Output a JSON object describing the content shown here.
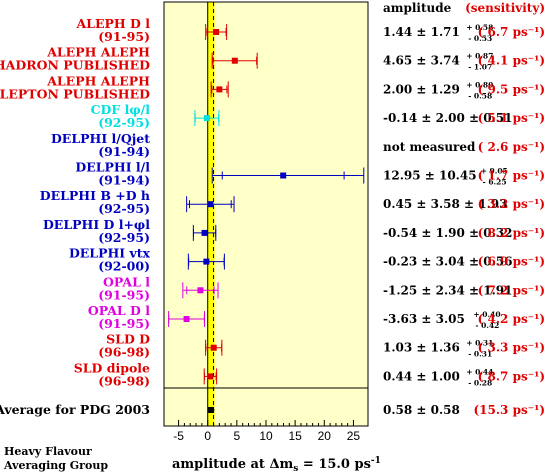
{
  "chart_data": {
    "type": "scatter",
    "title": "",
    "xlabel": "amplitude at Δm_s = 15.0 ps^-1",
    "x_prefix": "amplitude at Δm",
    "x_sub": "s",
    "x_mid": " = 15.0 ps",
    "x_sup": "-1",
    "xlim": [
      -7.5,
      27.5
    ],
    "xticks": [
      -5,
      0,
      5,
      10,
      15,
      20,
      25
    ],
    "reference_lines": [
      0,
      1
    ],
    "column_headers": {
      "amplitude": "amplitude",
      "sensitivity": "(sensitivity)"
    },
    "footer": [
      "Heavy Flavour",
      "Averaging Group"
    ],
    "average_label": "Average for PDG 2003",
    "colors": {
      "red": "#e00000",
      "cyan": "#00e0e0",
      "blue": "#0000c0",
      "magenta": "#e000e0",
      "band": "#ffff00",
      "bg": "#ffffc8"
    },
    "measurements": [
      {
        "name": "ALEPH D l",
        "years": "(91-95)",
        "color": "red",
        "amplitude": 1.44,
        "stat": 1.71,
        "syst_plus": 0.58,
        "syst_minus": 0.53,
        "text_main": "1.44 ± 1.71",
        "text_plus": "+ 0.58",
        "text_minus": "- 0.53",
        "sensitivity": "( 6.7 ps⁻¹)"
      },
      {
        "name": "ALEPH ALEPH",
        "years": "-HADRON PUBLISHED",
        "color": "red",
        "amplitude": 4.65,
        "stat": 3.74,
        "syst_plus": 0.87,
        "syst_minus": 1.07,
        "text_main": "4.65 ± 3.74",
        "text_plus": "+ 0.87",
        "text_minus": "- 1.07",
        "sensitivity": "( 4.1 ps⁻¹)"
      },
      {
        "name": "ALEPH ALEPH",
        "years": "-LEPTON PUBLISHED",
        "color": "red",
        "amplitude": 2.0,
        "stat": 1.29,
        "syst_plus": 0.8,
        "syst_minus": 0.58,
        "text_main": "2.00 ± 1.29",
        "text_plus": "+ 0.80",
        "text_minus": "- 0.58",
        "sensitivity": "( 9.5 ps⁻¹)"
      },
      {
        "name": "CDF lφ/l",
        "years": "(92-95)",
        "color": "cyan",
        "amplitude": -0.14,
        "stat": 2.0,
        "syst_plus": 0.51,
        "syst_minus": 0.51,
        "text_main": "-0.14 ± 2.00 ± 0.51",
        "text_plus": "",
        "text_minus": "",
        "sensitivity": "( 5.1 ps⁻¹)"
      },
      {
        "name": "DELPHI l/Qjet",
        "years": "(91-94)",
        "color": "blue",
        "amplitude": null,
        "stat": null,
        "syst_plus": null,
        "syst_minus": null,
        "text_main": "not measured",
        "text_plus": "",
        "text_minus": "",
        "sensitivity": "( 2.6 ps⁻¹)"
      },
      {
        "name": "DELPHI l/l",
        "years": "(91-94)",
        "color": "blue",
        "amplitude": 12.95,
        "stat": 10.45,
        "syst_plus": 9.05,
        "syst_minus": 6.25,
        "text_main": "12.95 ± 10.45",
        "text_plus": "+ 9.05",
        "text_minus": "- 6.25",
        "sensitivity": "( 1.7 ps⁻¹)"
      },
      {
        "name": "DELPHI B +D h",
        "years": "(92-95)",
        "color": "blue",
        "amplitude": 0.45,
        "stat": 3.58,
        "syst_plus": 1.93,
        "syst_minus": 1.93,
        "text_main": "0.45 ± 3.58 ± 1.93",
        "text_plus": "",
        "text_minus": "",
        "sensitivity": "( 3.2 ps⁻¹)"
      },
      {
        "name": "DELPHI D l+φl",
        "years": "(92-95)",
        "color": "blue",
        "amplitude": -0.54,
        "stat": 1.9,
        "syst_plus": 0.32,
        "syst_minus": 0.32,
        "text_main": "-0.54 ± 1.90 ± 0.32",
        "text_plus": "",
        "text_minus": "",
        "sensitivity": "( 8.2 ps⁻¹)"
      },
      {
        "name": "DELPHI vtx",
        "years": "(92-00)",
        "color": "blue",
        "amplitude": -0.23,
        "stat": 3.04,
        "syst_plus": 0.56,
        "syst_minus": 0.56,
        "text_main": "-0.23 ± 3.04 ± 0.56",
        "text_plus": "",
        "text_minus": "",
        "sensitivity": "( 6.9 ps⁻¹)"
      },
      {
        "name": "OPAL l",
        "years": "(91-95)",
        "color": "magenta",
        "amplitude": -1.25,
        "stat": 2.34,
        "syst_plus": 1.91,
        "syst_minus": 1.91,
        "text_main": "-1.25 ± 2.34 ± 1.91",
        "text_plus": "",
        "text_minus": "",
        "sensitivity": "( 7.2 ps⁻¹)"
      },
      {
        "name": "OPAL D l",
        "years": "(91-95)",
        "color": "magenta",
        "amplitude": -3.63,
        "stat": 3.05,
        "syst_plus": 0.4,
        "syst_minus": 0.42,
        "text_main": "-3.63 ± 3.05",
        "text_plus": "+ 0.40",
        "text_minus": "- 0.42",
        "sensitivity": "( 4.2 ps⁻¹)"
      },
      {
        "name": "SLD D",
        "years": "(96-98)",
        "color": "red",
        "amplitude": 1.03,
        "stat": 1.36,
        "syst_plus": 0.31,
        "syst_minus": 0.31,
        "text_main": "1.03 ± 1.36",
        "text_plus": "+ 0.31",
        "text_minus": "- 0.31",
        "sensitivity": "( 3.3 ps⁻¹)"
      },
      {
        "name": "SLD dipole",
        "years": "(96-98)",
        "color": "red",
        "amplitude": 0.44,
        "stat": 1.0,
        "syst_plus": 0.44,
        "syst_minus": 0.28,
        "text_main": "0.44 ± 1.00",
        "text_plus": "+ 0.44",
        "text_minus": "- 0.28",
        "sensitivity": "( 8.7 ps⁻¹)"
      }
    ],
    "average": {
      "amplitude": 0.58,
      "error": 0.58,
      "text_main": "0.58 ± 0.58",
      "sensitivity": "(15.3 ps⁻¹)"
    }
  }
}
